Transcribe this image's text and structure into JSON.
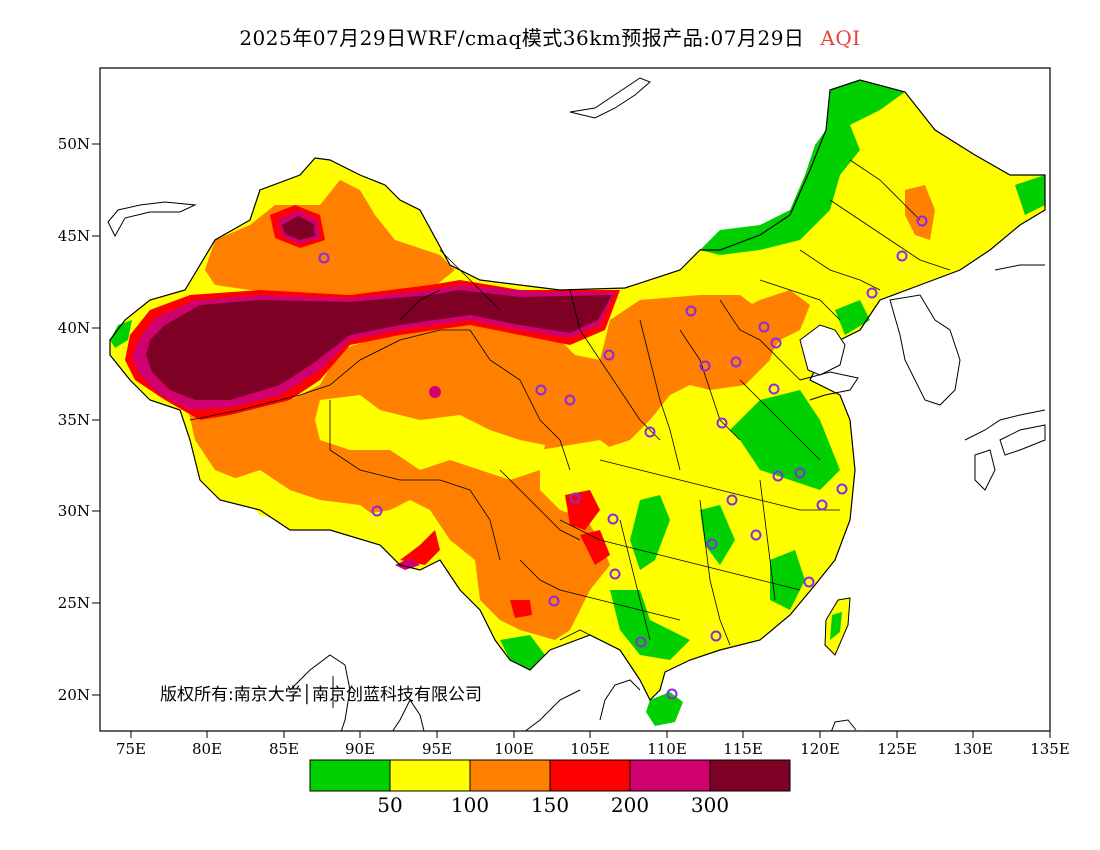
{
  "title": {
    "main": "2025年07月29日WRF/cmaq模式36km预报产品:07月29日",
    "variable": "AQI"
  },
  "copyright": "版权所有:南京大学│南京创蓝科技有限公司",
  "axes": {
    "lat_labels": [
      "50N",
      "45N",
      "40N",
      "35N",
      "30N",
      "25N",
      "20N"
    ],
    "lon_labels": [
      "75E",
      "80E",
      "85E",
      "90E",
      "95E",
      "100E",
      "105E",
      "110E",
      "115E",
      "120E",
      "125E",
      "130E",
      "135E"
    ],
    "lon_range": [
      73,
      135
    ],
    "lat_range": [
      18,
      54
    ]
  },
  "colorbar": {
    "colors": [
      "#00d000",
      "#ffff00",
      "#ff8000",
      "#ff0000",
      "#d0006f",
      "#7f0025"
    ],
    "breaks": [
      "50",
      "100",
      "150",
      "200",
      "300"
    ]
  },
  "colors": {
    "station_marker": "#8a2be2",
    "title_accent": "#e8423a"
  }
}
